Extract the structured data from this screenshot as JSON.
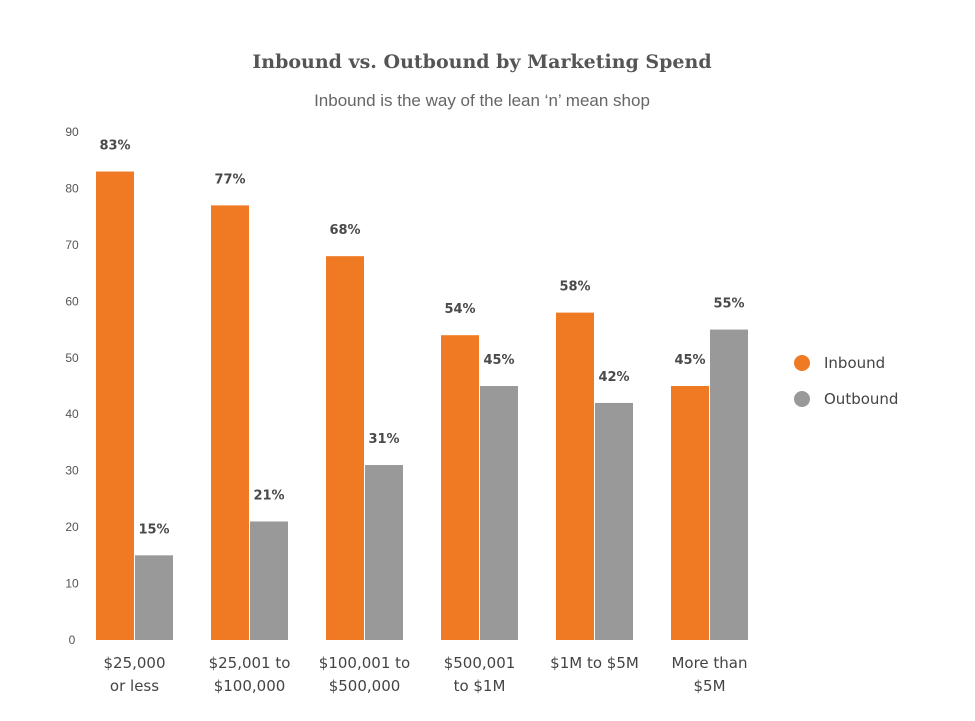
{
  "chart_data": {
    "type": "bar",
    "title": "Inbound vs. Outbound by Marketing Spend",
    "subtitle": "Inbound is the way of the lean ‘n’ mean shop",
    "categories": [
      [
        "$25,000",
        "or less"
      ],
      [
        "$25,001 to",
        "$100,000"
      ],
      [
        "$100,001 to",
        "$500,000"
      ],
      [
        "$500,001",
        "to $1M"
      ],
      [
        "$1M to $5M"
      ],
      [
        "More than",
        "$5M"
      ]
    ],
    "series": [
      {
        "name": "Inbound",
        "color": "#f07a24",
        "values": [
          83,
          77,
          68,
          54,
          58,
          45
        ],
        "labels": [
          "83%",
          "77%",
          "68%",
          "54%",
          "58%",
          "45%"
        ]
      },
      {
        "name": "Outbound",
        "color": "#999999",
        "values": [
          15,
          21,
          31,
          45,
          42,
          55
        ],
        "labels": [
          "15%",
          "21%",
          "31%",
          "45%",
          "42%",
          "55%"
        ]
      }
    ],
    "ylim": [
      0,
      90
    ],
    "yticks": [
      0,
      10,
      20,
      30,
      40,
      50,
      60,
      70,
      80,
      90
    ],
    "grid": false,
    "legend_position": "right",
    "xlabel": "",
    "ylabel": ""
  }
}
